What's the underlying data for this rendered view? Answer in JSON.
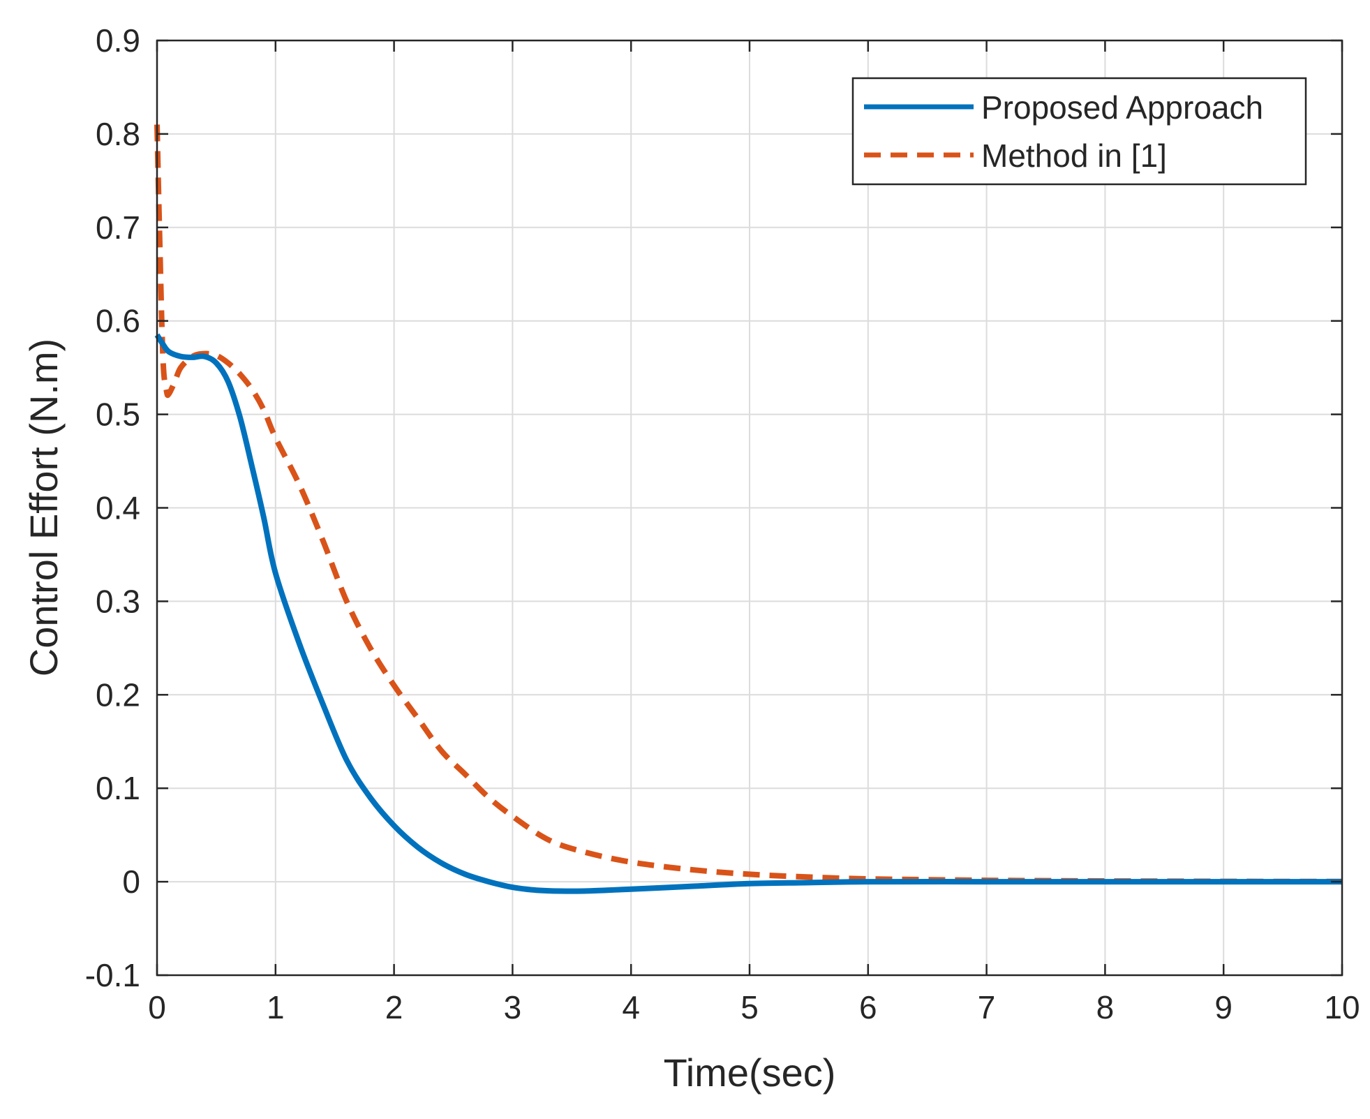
{
  "chart_data": {
    "type": "line",
    "title": "",
    "xlabel": "Time(sec)",
    "ylabel": "Control Effort  (N.m)",
    "xlim": [
      0,
      10
    ],
    "ylim": [
      -0.1,
      0.9
    ],
    "xticks": [
      0,
      1,
      2,
      3,
      4,
      5,
      6,
      7,
      8,
      9,
      10
    ],
    "xtick_labels": [
      "0",
      "1",
      "2",
      "3",
      "4",
      "5",
      "6",
      "7",
      "8",
      "9",
      "10"
    ],
    "yticks": [
      -0.1,
      0,
      0.1,
      0.2,
      0.3,
      0.4,
      0.5,
      0.6,
      0.7,
      0.8,
      0.9
    ],
    "ytick_labels": [
      "-0.1",
      "0",
      "0.1",
      "0.2",
      "0.3",
      "0.4",
      "0.5",
      "0.6",
      "0.7",
      "0.8",
      "0.9"
    ],
    "grid": true,
    "legend_position": "top-right",
    "series": [
      {
        "name": "Proposed Approach",
        "color": "#0072BD",
        "style": "solid",
        "x": [
          0,
          0.05,
          0.1,
          0.2,
          0.3,
          0.4,
          0.5,
          0.6,
          0.7,
          0.8,
          0.9,
          1.0,
          1.2,
          1.4,
          1.6,
          1.8,
          2.0,
          2.2,
          2.4,
          2.6,
          2.8,
          3.0,
          3.2,
          3.4,
          3.6,
          3.8,
          4.0,
          4.5,
          5.0,
          5.5,
          6.0,
          7.0,
          8.0,
          9.0,
          10.0
        ],
        "y": [
          0.585,
          0.575,
          0.567,
          0.562,
          0.561,
          0.562,
          0.555,
          0.535,
          0.497,
          0.445,
          0.39,
          0.33,
          0.255,
          0.19,
          0.13,
          0.09,
          0.06,
          0.037,
          0.02,
          0.008,
          0.0,
          -0.006,
          -0.009,
          -0.01,
          -0.01,
          -0.009,
          -0.008,
          -0.005,
          -0.002,
          -0.001,
          0.0,
          0.0,
          0.0,
          0.0,
          0.0
        ]
      },
      {
        "name": "Method in [1]",
        "color": "#D95319",
        "style": "dashed",
        "x": [
          0,
          0.02,
          0.05,
          0.08,
          0.1,
          0.15,
          0.2,
          0.3,
          0.4,
          0.5,
          0.6,
          0.7,
          0.8,
          0.9,
          1.0,
          1.2,
          1.4,
          1.6,
          1.8,
          2.0,
          2.2,
          2.4,
          2.6,
          2.8,
          3.0,
          3.3,
          3.6,
          4.0,
          4.5,
          5.0,
          5.5,
          6.0,
          6.5,
          7.0,
          8.0,
          9.0,
          10.0
        ],
        "y": [
          0.81,
          0.7,
          0.56,
          0.525,
          0.522,
          0.535,
          0.55,
          0.562,
          0.565,
          0.563,
          0.555,
          0.543,
          0.527,
          0.505,
          0.475,
          0.425,
          0.365,
          0.3,
          0.25,
          0.21,
          0.175,
          0.14,
          0.115,
          0.09,
          0.07,
          0.045,
          0.032,
          0.021,
          0.013,
          0.008,
          0.005,
          0.003,
          0.0022,
          0.0015,
          0.0008,
          0.0004,
          0.0002
        ]
      }
    ]
  }
}
